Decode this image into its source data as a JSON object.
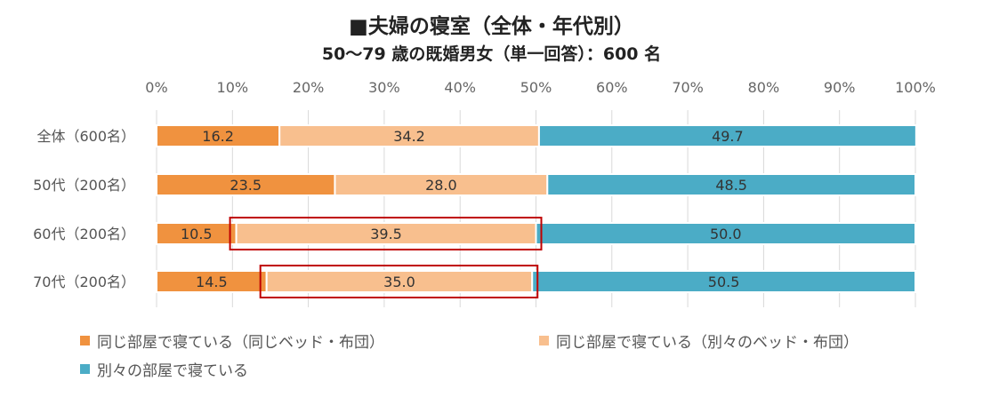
{
  "title": "■夫婦の寝室（全体・年代別）",
  "subtitle": "50～79 歳の既婚男女（単一回答）：600 名",
  "colors": {
    "same_bed": "#F0923F",
    "separate_bed": "#F8BF8E",
    "separate_room": "#4BACC6",
    "highlight": "#C00000",
    "axis_text": "#666666",
    "grid": "#D9D9D9"
  },
  "chart_data": {
    "type": "bar",
    "orientation": "horizontal",
    "stacked": true,
    "title": "■夫婦の寝室（全体・年代別）",
    "subtitle": "50～79 歳の既婚男女（単一回答）：600 名",
    "categories": [
      "全体（600名）",
      "50代（200名）",
      "60代（200名）",
      "70代（200名）"
    ],
    "series": [
      {
        "name": "同じ部屋で寝ている（同じベッド・布団）",
        "values": [
          16.2,
          23.5,
          10.5,
          14.5
        ]
      },
      {
        "name": "同じ部屋で寝ている（別々のベッド・布団）",
        "values": [
          34.2,
          28.0,
          39.5,
          35.0
        ]
      },
      {
        "name": "別々の部屋で寝ている",
        "values": [
          49.7,
          48.5,
          50.0,
          50.5
        ]
      }
    ],
    "xlim": [
      0,
      100
    ],
    "ticks": [
      "0%",
      "10%",
      "20%",
      "30%",
      "40%",
      "50%",
      "60%",
      "70%",
      "80%",
      "90%",
      "100%"
    ],
    "grid": true,
    "legend_position": "bottom",
    "highlighted": [
      {
        "category_index": 2,
        "series_index": 1
      },
      {
        "category_index": 3,
        "series_index": 1
      }
    ]
  }
}
